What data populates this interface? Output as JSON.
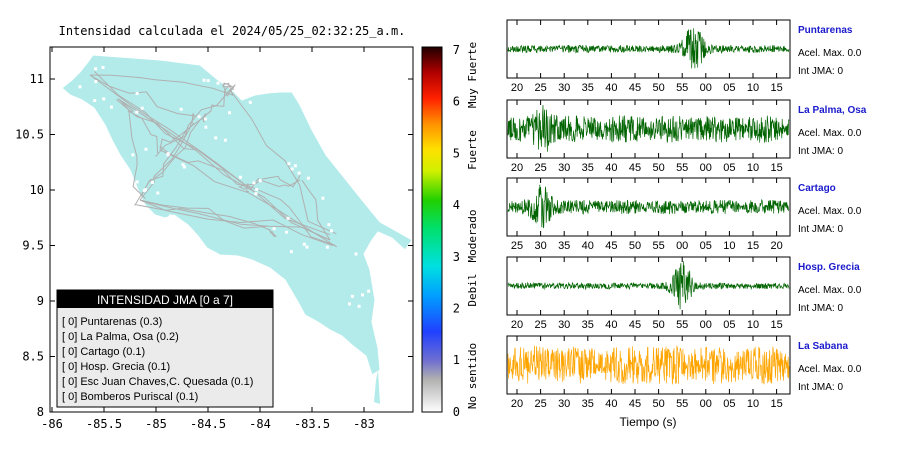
{
  "map": {
    "title": "Intensidad calculada el 2024/05/25_02:32:25_a.m.",
    "x_ticks": [
      "-86",
      "-85.5",
      "-85",
      "-84.5",
      "-84",
      "-83.5",
      "-83"
    ],
    "y_ticks": [
      "11",
      "10.5",
      "10",
      "9.5",
      "9",
      "8.5",
      "8"
    ],
    "land_color": "#b3ebeb",
    "legend": {
      "title": "INTENSIDAD JMA [0 a 7]",
      "rows": [
        "[ 0]  Puntarenas (0.3)",
        "[ 0]  La Palma, Osa (0.2)",
        "[ 0]  Cartago (0.1)",
        "[ 0]  Hosp. Grecia (0.1)",
        "[ 0]  Esc Juan Chaves,C. Quesada (0.1)",
        "[ 0]  Bomberos Puriscal (0.1)"
      ]
    }
  },
  "colorbar": {
    "ticks": [
      "7",
      "6",
      "5",
      "4",
      "3",
      "2",
      "1",
      "0"
    ],
    "labels": [
      "Muy Fuerte",
      "Fuerte",
      "Moderado",
      "Debil",
      "No sentido"
    ]
  },
  "chart_data": {
    "type": "line",
    "xlabel": "Tiempo (s)",
    "stations": [
      {
        "name": "Puntarenas",
        "accel": "Acel. Max. 0.0",
        "int": "Int JMA: 0",
        "ticks": [
          "20",
          "25",
          "30",
          "35",
          "40",
          "45",
          "50",
          "55",
          "00",
          "05",
          "10",
          "15"
        ],
        "color": "#006400",
        "burst_center": 0.66,
        "burst_amp": 0.85,
        "noise": 0.12,
        "seed": 11
      },
      {
        "name": "La Palma, Osa",
        "accel": "Acel. Max. 0.0",
        "int": "Int JMA: 0",
        "ticks": [
          "20",
          "25",
          "30",
          "35",
          "40",
          "45",
          "50",
          "55",
          "00",
          "05",
          "10",
          "15"
        ],
        "color": "#006400",
        "burst_center": 0.13,
        "burst_amp": 0.45,
        "noise": 0.42,
        "seed": 23
      },
      {
        "name": "Cartago",
        "accel": "Acel. Max. 0.0",
        "int": "Int JMA: 0",
        "ticks": [
          "25",
          "30",
          "35",
          "40",
          "45",
          "50",
          "55",
          "00",
          "05",
          "10",
          "15",
          "20"
        ],
        "color": "#006400",
        "burst_center": 0.12,
        "burst_amp": 0.65,
        "noise": 0.22,
        "seed": 37
      },
      {
        "name": "Hosp. Grecia",
        "accel": "Acel. Max. 0.0",
        "int": "Int JMA: 0",
        "ticks": [
          "20",
          "25",
          "30",
          "35",
          "40",
          "45",
          "50",
          "55",
          "00",
          "05",
          "10",
          "15"
        ],
        "color": "#006400",
        "burst_center": 0.62,
        "burst_amp": 0.9,
        "noise": 0.1,
        "seed": 41
      },
      {
        "name": "La Sabana",
        "accel": "Acel. Max. 0.0",
        "int": "Int JMA: 0",
        "ticks": [
          "20",
          "25",
          "30",
          "35",
          "40",
          "45",
          "50",
          "55",
          "00",
          "05",
          "10",
          "15"
        ],
        "color": "#ffa500",
        "burst_center": 0.5,
        "burst_amp": 0.1,
        "noise": 0.6,
        "seed": 53
      }
    ]
  }
}
